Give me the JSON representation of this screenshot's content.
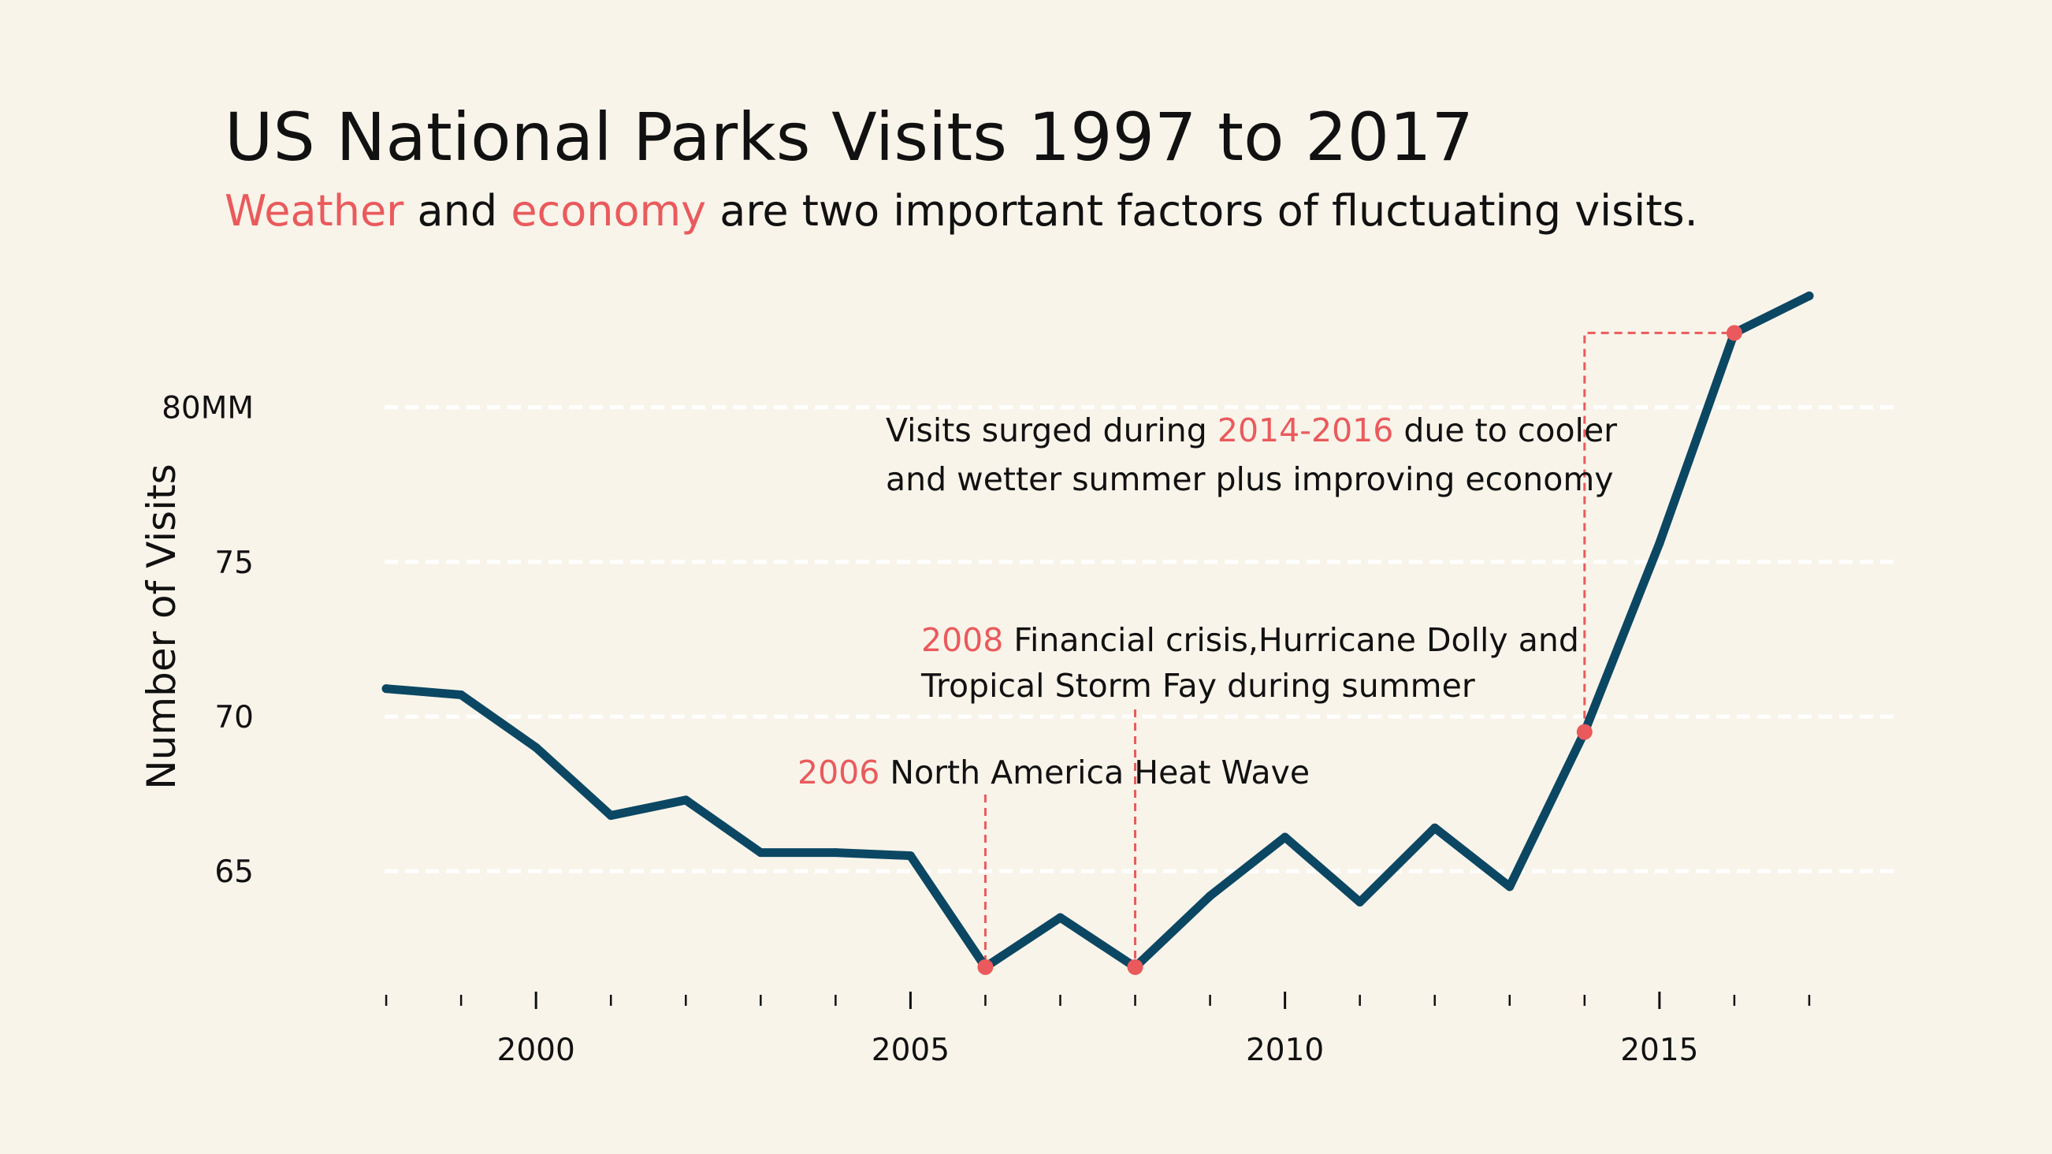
{
  "colors": {
    "background": "#f9f4ea",
    "line": "#0b4763",
    "accent": "#ea5a5c",
    "grid": "#ffffff",
    "text": "#111111"
  },
  "header": {
    "title": "US National Parks Visits 1997 to 2017",
    "subtitle": {
      "w1": "Weather",
      "t1": " and ",
      "w2": "economy",
      "t2": " are two important factors of fluctuating visits."
    }
  },
  "chart_data": {
    "type": "line",
    "title": "US National Parks Visits 1997 to 2017",
    "ylabel": "Number of Visits",
    "xlabel": "",
    "x": [
      1998,
      1999,
      2000,
      2001,
      2002,
      2003,
      2004,
      2005,
      2006,
      2007,
      2008,
      2009,
      2010,
      2011,
      2012,
      2013,
      2014,
      2015,
      2016,
      2017
    ],
    "series": [
      {
        "values": [
          70.9,
          70.7,
          69.0,
          66.8,
          67.3,
          65.6,
          65.6,
          65.5,
          61.9,
          63.5,
          61.9,
          64.2,
          66.1,
          64.0,
          66.4,
          64.5,
          69.5,
          75.6,
          82.4,
          83.6
        ]
      }
    ],
    "xlim": [
      1996,
      2018.2
    ],
    "ylim": [
      60.8,
      84.5
    ],
    "x_ticks": [
      2000,
      2005,
      2010,
      2015
    ],
    "x_tick_labels": [
      "2000",
      "2005",
      "2010",
      "2015"
    ],
    "x_minor_ticks": [
      1998,
      1999,
      2001,
      2002,
      2003,
      2004,
      2006,
      2007,
      2008,
      2009,
      2011,
      2012,
      2013,
      2014,
      2016,
      2017
    ],
    "y_ticks": [
      65,
      70,
      75,
      80
    ],
    "y_tick_labels": [
      "65",
      "70",
      "75",
      "80MM"
    ],
    "grid": true,
    "highlight_points": [
      {
        "x": 2006,
        "y": 61.9
      },
      {
        "x": 2008,
        "y": 61.9
      },
      {
        "x": 2014,
        "y": 69.5
      },
      {
        "x": 2016,
        "y": 82.4
      }
    ],
    "annotations": [
      {
        "id": "heat",
        "year_text": "2006",
        "line1": " North America Heat Wave",
        "line2": ""
      },
      {
        "id": "crisis",
        "year_text": "2008",
        "line1": " Financial crisis,Hurricane Dolly and",
        "line2": "Tropical Storm Fay during summer"
      },
      {
        "id": "surge",
        "pre": "Visits surged during ",
        "year_text": "2014-2016",
        "line1": " due to cooler",
        "line2": "and wetter summer plus improving economy"
      }
    ]
  }
}
